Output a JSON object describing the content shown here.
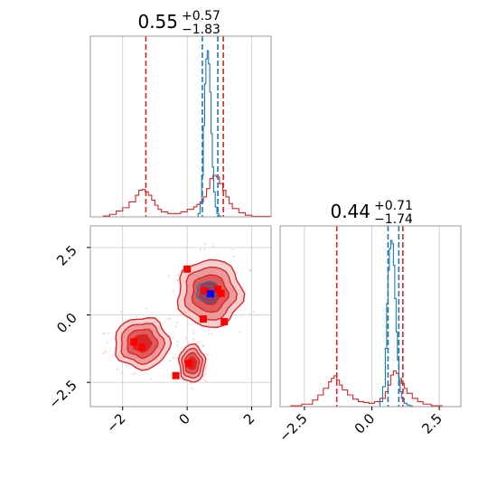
{
  "chart_data": [
    {
      "type": "histogram",
      "panel": "top-left",
      "title": {
        "median": "0.55",
        "plus": "+0.57",
        "minus": "−1.83"
      },
      "xlim": [
        -3.0,
        2.6
      ],
      "grid": true,
      "series": [
        {
          "color": "#d62728",
          "step_x": [
            -3.0,
            -2.6,
            -2.4,
            -2.2,
            -2.0,
            -1.8,
            -1.6,
            -1.5,
            -1.4,
            -1.3,
            -1.2,
            -1.1,
            -1.0,
            -0.9,
            -0.8,
            -0.6,
            -0.4,
            -0.2,
            0.0,
            0.2,
            0.3,
            0.4,
            0.5,
            0.6,
            0.7,
            0.8,
            0.9,
            1.0,
            1.1,
            1.2,
            1.3,
            1.4,
            1.6,
            1.8,
            2.0,
            2.6
          ],
          "step_y": [
            0.0,
            0.005,
            0.015,
            0.035,
            0.055,
            0.09,
            0.13,
            0.16,
            0.165,
            0.15,
            0.13,
            0.1,
            0.07,
            0.045,
            0.03,
            0.02,
            0.02,
            0.03,
            0.045,
            0.06,
            0.075,
            0.09,
            0.12,
            0.17,
            0.23,
            0.25,
            0.24,
            0.2,
            0.16,
            0.12,
            0.08,
            0.05,
            0.025,
            0.01,
            0.003,
            0.0
          ]
        },
        {
          "color": "#1f77b4",
          "step_x": [
            0.28,
            0.34,
            0.4,
            0.45,
            0.5,
            0.54,
            0.58,
            0.62,
            0.66,
            0.7,
            0.74,
            0.78,
            0.82,
            0.87,
            0.92,
            0.98,
            1.04
          ],
          "step_y": [
            0.0,
            0.02,
            0.08,
            0.25,
            0.55,
            0.8,
            0.95,
            1.0,
            0.92,
            0.75,
            0.5,
            0.3,
            0.15,
            0.06,
            0.02,
            0.005,
            0.0
          ]
        }
      ],
      "quantile_lines": [
        {
          "x": -1.28,
          "color": "#d62728"
        },
        {
          "x": 1.12,
          "color": "#d62728"
        },
        {
          "x": 0.47,
          "color": "#1f77b4"
        },
        {
          "x": 0.95,
          "color": "#1f77b4"
        }
      ]
    },
    {
      "type": "contour",
      "panel": "bottom-left",
      "xlim": [
        -3.0,
        2.6
      ],
      "ylim": [
        -3.4,
        3.3
      ],
      "xticks": [
        -2,
        0,
        2
      ],
      "xtick_labels": [
        "−2",
        "0",
        "2"
      ],
      "yticks": [
        -2.5,
        0.0,
        2.5
      ],
      "ytick_labels": [
        "−2.5",
        "0.0",
        "2.5"
      ],
      "grid": true,
      "colors": {
        "red": "#d62728",
        "blue": "#1f77b4"
      },
      "red_clusters": [
        {
          "cx": 0.7,
          "cy": 0.8,
          "rx": 1.0,
          "ry": 1.25
        },
        {
          "cx": -1.4,
          "cy": -1.05,
          "rx": 0.85,
          "ry": 0.95
        },
        {
          "cx": 0.15,
          "cy": -1.8,
          "rx": 0.4,
          "ry": 0.7
        }
      ],
      "blue_cluster": {
        "cx": 0.65,
        "cy": 0.85,
        "rx": 0.35,
        "ry": 0.38
      },
      "markers_red": [
        [
          0.0,
          1.7
        ],
        [
          0.95,
          0.95
        ],
        [
          1.05,
          0.8
        ],
        [
          0.55,
          0.9
        ],
        [
          1.15,
          -0.25
        ],
        [
          0.5,
          -0.15
        ],
        [
          -1.65,
          -1.0
        ],
        [
          -1.4,
          -1.2
        ],
        [
          0.05,
          -1.8
        ],
        [
          -0.35,
          -2.25
        ]
      ],
      "markers_blue": [
        [
          0.72,
          0.78
        ]
      ]
    },
    {
      "type": "histogram",
      "panel": "bottom-right",
      "title": {
        "median": "0.44",
        "plus": "+0.71",
        "minus": "−1.74"
      },
      "xlim": [
        -3.4,
        3.3
      ],
      "xticks": [
        -2.5,
        0.0,
        2.5
      ],
      "xtick_labels": [
        "−2.5",
        "0.0",
        "2.5"
      ],
      "grid": true,
      "series": [
        {
          "color": "#d62728",
          "step_x": [
            -3.4,
            -3.0,
            -2.6,
            -2.2,
            -2.0,
            -1.8,
            -1.6,
            -1.5,
            -1.4,
            -1.3,
            -1.2,
            -1.1,
            -0.9,
            -0.7,
            -0.5,
            -0.3,
            -0.1,
            0.1,
            0.3,
            0.5,
            0.6,
            0.7,
            0.8,
            0.9,
            1.0,
            1.1,
            1.2,
            1.3,
            1.5,
            1.7,
            1.9,
            2.2,
            2.6,
            3.3
          ],
          "step_y": [
            0.0,
            0.005,
            0.015,
            0.04,
            0.07,
            0.11,
            0.15,
            0.17,
            0.185,
            0.16,
            0.13,
            0.1,
            0.07,
            0.045,
            0.03,
            0.025,
            0.02,
            0.03,
            0.05,
            0.09,
            0.13,
            0.19,
            0.215,
            0.2,
            0.17,
            0.14,
            0.11,
            0.08,
            0.05,
            0.03,
            0.015,
            0.005,
            0.0,
            0.0
          ]
        },
        {
          "color": "#1f77b4",
          "step_x": [
            0.2,
            0.3,
            0.4,
            0.5,
            0.55,
            0.6,
            0.65,
            0.7,
            0.75,
            0.8,
            0.85,
            0.9,
            0.95,
            1.0,
            1.05,
            1.1,
            1.2,
            1.3,
            1.4,
            1.5
          ],
          "step_y": [
            0.0,
            0.03,
            0.12,
            0.35,
            0.62,
            0.82,
            0.95,
            1.0,
            0.98,
            0.85,
            0.65,
            0.45,
            0.28,
            0.16,
            0.09,
            0.05,
            0.02,
            0.01,
            0.005,
            0.0
          ]
        }
      ],
      "quantile_lines": [
        {
          "x": -1.3,
          "color": "#d62728"
        },
        {
          "x": 1.15,
          "color": "#d62728"
        },
        {
          "x": 0.6,
          "color": "#1f77b4"
        },
        {
          "x": 1.0,
          "color": "#1f77b4"
        }
      ]
    }
  ]
}
